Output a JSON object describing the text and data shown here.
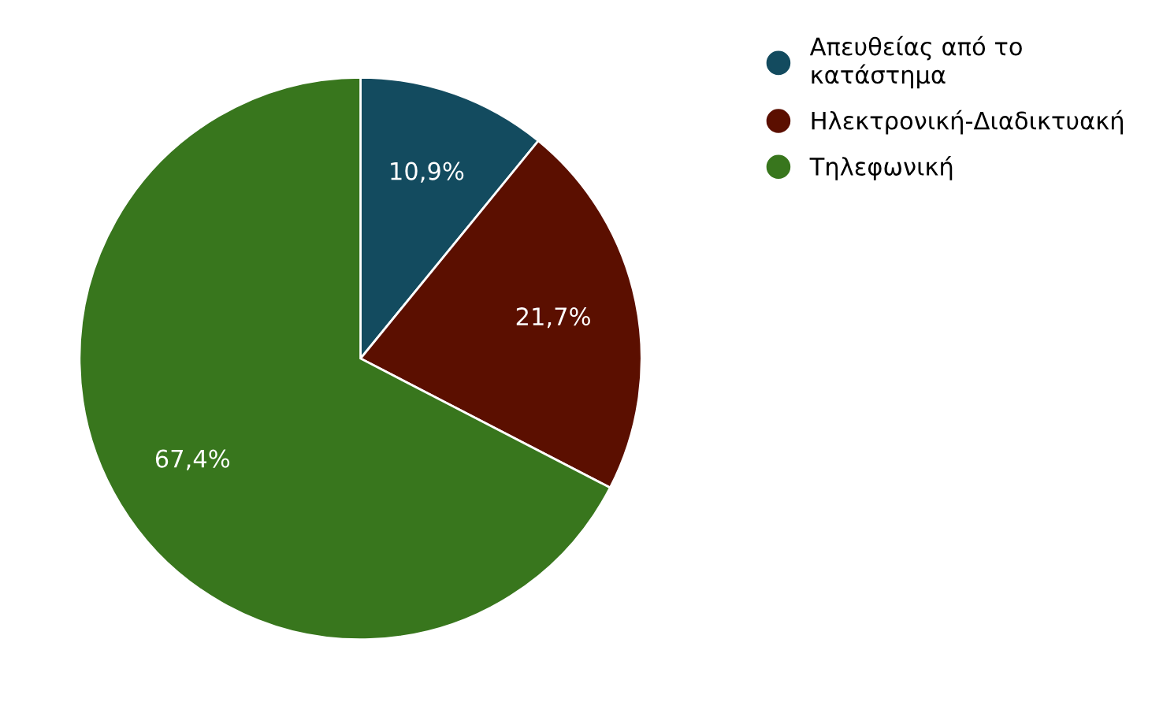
{
  "chart_data": {
    "type": "pie",
    "categories": [
      "Απευθείας από το\nκατάστημα",
      "Ηλεκτρονική-Διαδικτυακή",
      "Τηλεφωνική"
    ],
    "values": [
      10.9,
      21.7,
      67.4
    ],
    "colors": [
      "#134b5f",
      "#5b0f00",
      "#38761d"
    ],
    "value_labels": [
      "10,9%",
      "21,7%",
      "67,4%"
    ],
    "legend": "top right"
  }
}
